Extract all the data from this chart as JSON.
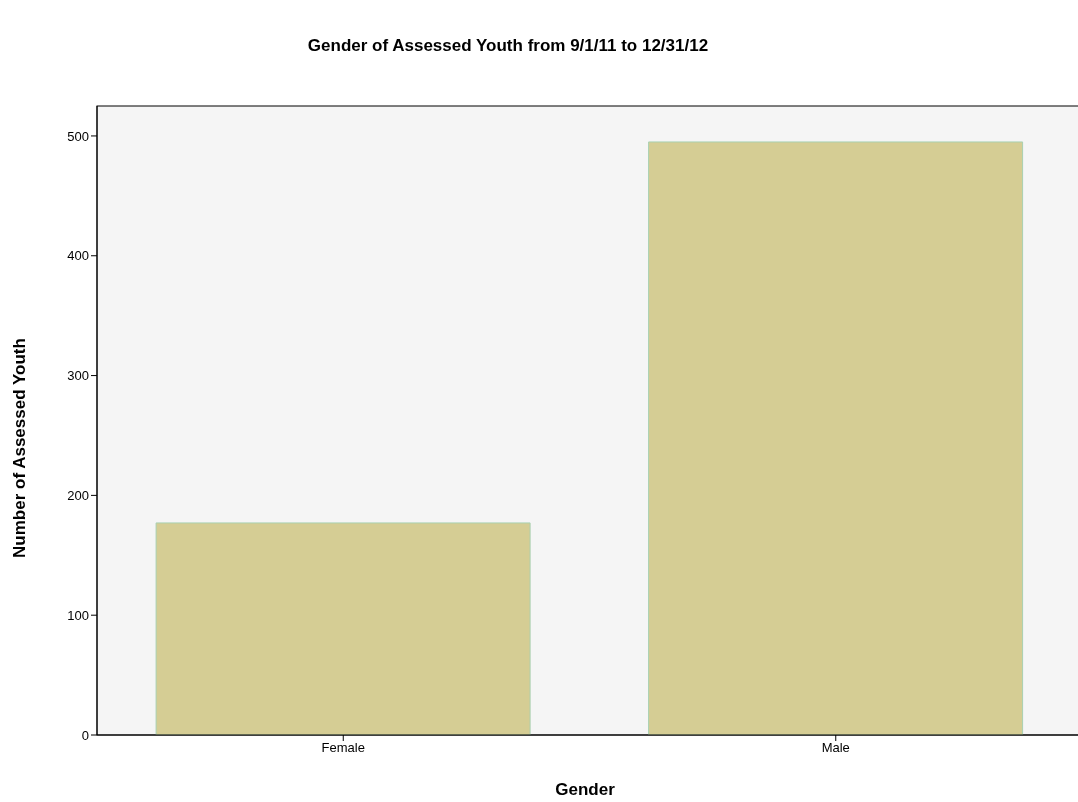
{
  "chart_data": {
    "type": "bar",
    "title": "Gender of Assessed Youth from 9/1/11 to 12/31/12",
    "xlabel": "Gender",
    "ylabel": "Number of Assessed Youth",
    "categories": [
      "Female",
      "Male"
    ],
    "values": [
      177,
      495
    ],
    "color": "#d5cd94",
    "ylim": [
      0,
      525
    ],
    "yticks": [
      0,
      100,
      200,
      300,
      400,
      500
    ],
    "grid": false
  }
}
